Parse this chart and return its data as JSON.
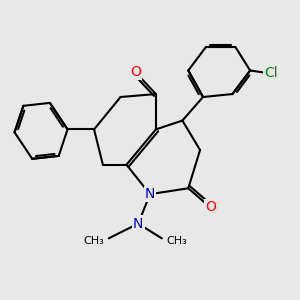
{
  "background_color": "#e8e8e8",
  "bond_color": "#000000",
  "bond_width": 1.5,
  "atom_colors": {
    "O": "#ff0000",
    "N": "#0000cc",
    "Cl": "#008800",
    "C": "#000000"
  },
  "font_size_atom": 10
}
